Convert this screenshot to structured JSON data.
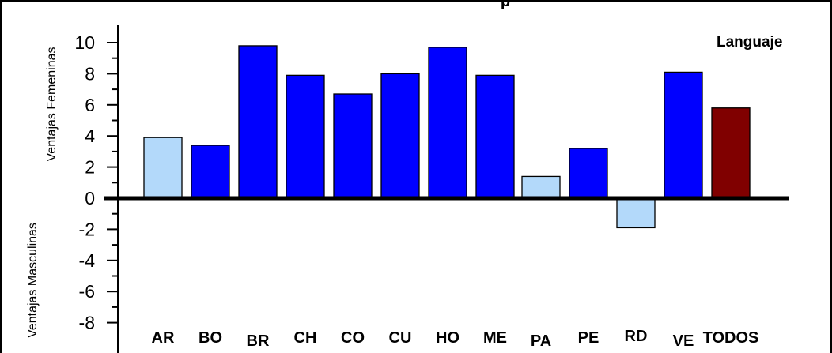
{
  "chart_data": {
    "type": "bar",
    "title": "p",
    "legend_label": "Languaje",
    "legend_position": "top-right",
    "ylabel_positive": "Ventajas Femeninas",
    "ylabel_negative": "Ventajas Masculinas",
    "categories": [
      "AR",
      "BO",
      "BR",
      "CH",
      "CO",
      "CU",
      "HO",
      "ME",
      "PA",
      "PE",
      "RD",
      "VE",
      "TODOS"
    ],
    "values": [
      3.9,
      3.4,
      9.8,
      7.9,
      6.7,
      8.0,
      9.7,
      7.9,
      1.4,
      3.2,
      -1.9,
      8.1,
      5.8
    ],
    "bar_colors": [
      "#b3d9fa",
      "#0000ff",
      "#0000ff",
      "#0000ff",
      "#0000ff",
      "#0000ff",
      "#0000ff",
      "#0000ff",
      "#b3d9fa",
      "#0000ff",
      "#b3d9fa",
      "#0000ff",
      "#800000"
    ],
    "ylim": [
      -8,
      10
    ],
    "yticks": [
      "10",
      "8",
      "6",
      "4",
      "2",
      "0",
      "-2",
      "-4",
      "-6",
      "-8"
    ],
    "grid": false
  }
}
